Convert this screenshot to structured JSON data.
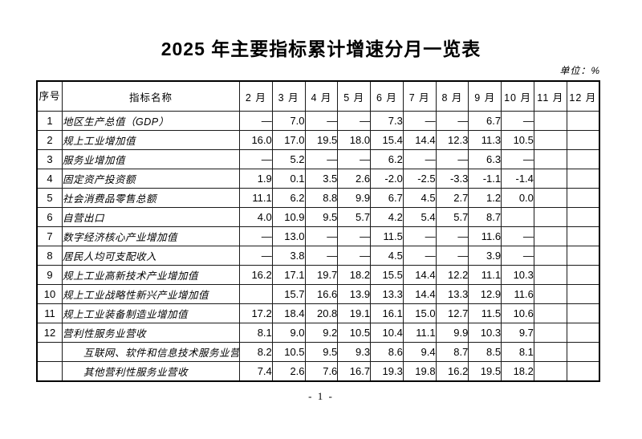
{
  "title": "2025 年主要指标累计增速分月一览表",
  "unit_label": "单位：%",
  "page_number": "- 1 -",
  "colors": {
    "background": "#ffffff",
    "text": "#000000",
    "border": "#000000"
  },
  "table": {
    "header": {
      "seq": "序号",
      "name": "指标名称",
      "months": [
        "2 月",
        "3 月",
        "4 月",
        "5 月",
        "6 月",
        "7 月",
        "8 月",
        "9 月",
        "10 月",
        "11 月",
        "12 月"
      ]
    },
    "rows": [
      {
        "seq": "1",
        "name": "地区生产总值（GDP）",
        "indent": false,
        "values": [
          "—",
          "7.0",
          "—",
          "—",
          "7.3",
          "—",
          "—",
          "6.7",
          "—",
          "",
          ""
        ]
      },
      {
        "seq": "2",
        "name": "规上工业增加值",
        "indent": false,
        "values": [
          "16.0",
          "17.0",
          "19.5",
          "18.0",
          "15.4",
          "14.4",
          "12.3",
          "11.3",
          "10.5",
          "",
          ""
        ]
      },
      {
        "seq": "3",
        "name": "服务业增加值",
        "indent": false,
        "values": [
          "—",
          "5.2",
          "—",
          "—",
          "6.2",
          "—",
          "—",
          "6.3",
          "—",
          "",
          ""
        ]
      },
      {
        "seq": "4",
        "name": "固定资产投资额",
        "indent": false,
        "values": [
          "1.9",
          "0.1",
          "3.5",
          "2.6",
          "-2.0",
          "-2.5",
          "-3.3",
          "-1.1",
          "-1.4",
          "",
          ""
        ]
      },
      {
        "seq": "5",
        "name": "社会消费品零售总额",
        "indent": false,
        "values": [
          "11.1",
          "6.2",
          "8.8",
          "9.9",
          "6.7",
          "4.5",
          "2.7",
          "1.2",
          "0.0",
          "",
          ""
        ]
      },
      {
        "seq": "6",
        "name": "自营出口",
        "indent": false,
        "values": [
          "4.0",
          "10.9",
          "9.5",
          "5.7",
          "4.2",
          "5.4",
          "5.7",
          "8.7",
          "",
          "",
          ""
        ]
      },
      {
        "seq": "7",
        "name": "数字经济核心产业增加值",
        "indent": false,
        "values": [
          "—",
          "13.0",
          "—",
          "—",
          "11.5",
          "—",
          "—",
          "11.6",
          "—",
          "",
          ""
        ]
      },
      {
        "seq": "8",
        "name": "居民人均可支配收入",
        "indent": false,
        "values": [
          "—",
          "3.8",
          "—",
          "—",
          "4.5",
          "—",
          "—",
          "3.9",
          "—",
          "",
          ""
        ]
      },
      {
        "seq": "9",
        "name": "规上工业高新技术产业增加值",
        "indent": false,
        "values": [
          "16.2",
          "17.1",
          "19.7",
          "18.2",
          "15.5",
          "14.4",
          "12.2",
          "11.1",
          "10.3",
          "",
          ""
        ]
      },
      {
        "seq": "10",
        "name": "规上工业战略性新兴产业增加值",
        "indent": false,
        "values": [
          "",
          "15.7",
          "16.6",
          "13.9",
          "13.3",
          "14.4",
          "13.3",
          "12.9",
          "11.6",
          "",
          ""
        ]
      },
      {
        "seq": "11",
        "name": "规上工业装备制造业增加值",
        "indent": false,
        "values": [
          "17.2",
          "18.4",
          "20.8",
          "19.1",
          "16.1",
          "15.0",
          "12.7",
          "11.5",
          "10.6",
          "",
          ""
        ]
      },
      {
        "seq": "12",
        "name": "营利性服务业营收",
        "indent": false,
        "values": [
          "8.1",
          "9.0",
          "9.2",
          "10.5",
          "10.4",
          "11.1",
          "9.9",
          "10.3",
          "9.7",
          "",
          ""
        ]
      },
      {
        "seq": "",
        "name": "互联网、软件和信息技术服务业营收",
        "indent": true,
        "values": [
          "8.2",
          "10.5",
          "9.5",
          "9.3",
          "8.6",
          "9.4",
          "8.7",
          "8.5",
          "8.1",
          "",
          ""
        ]
      },
      {
        "seq": "",
        "name": "其他营利性服务业营收",
        "indent": true,
        "values": [
          "7.4",
          "2.6",
          "7.6",
          "16.7",
          "19.3",
          "19.8",
          "16.2",
          "19.5",
          "18.2",
          "",
          ""
        ]
      }
    ]
  }
}
